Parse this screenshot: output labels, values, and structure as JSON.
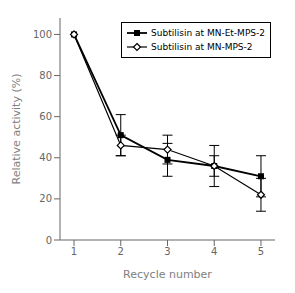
{
  "chart_data": {
    "type": "line",
    "x": [
      1,
      2,
      3,
      4,
      5
    ],
    "xlabel": "Recycle number",
    "ylabel": "Relative activity (%)",
    "xlim": [
      0.7,
      5.3
    ],
    "ylim": [
      0,
      108
    ],
    "xticks": [
      1,
      2,
      3,
      4,
      5
    ],
    "yticks": [
      0,
      20,
      40,
      60,
      80,
      100
    ],
    "legend": "upper right",
    "series": [
      {
        "name": "Subtilisin at MN-Et-MPS-2",
        "color": "#000000",
        "marker": "square",
        "line_style": "solid",
        "values": [
          100,
          51,
          39,
          36,
          31
        ],
        "errors": [
          0,
          10,
          8,
          10,
          10
        ]
      },
      {
        "name": "Subtilisin at MN-MPS-2",
        "color": "#000000",
        "marker": "open_diamond",
        "line_style": "solid",
        "values": [
          100,
          46,
          44,
          36,
          22
        ],
        "errors": [
          0,
          5,
          7,
          5,
          8
        ]
      }
    ]
  }
}
